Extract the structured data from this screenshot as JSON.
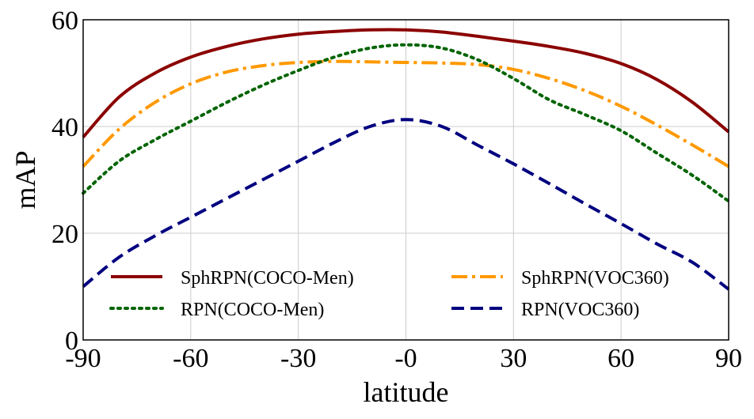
{
  "chart_data": {
    "type": "line",
    "title": "",
    "xlabel": "latitude",
    "ylabel": "mAP",
    "xlim": [
      -90,
      90
    ],
    "ylim": [
      0,
      60
    ],
    "grid": true,
    "x_ticks": [
      -90,
      -60,
      -30,
      0,
      30,
      60,
      90
    ],
    "x_tick_labels": [
      "-90",
      "-60",
      "-30",
      "-0",
      "30",
      "60",
      "90"
    ],
    "y_ticks": [
      0,
      20,
      40,
      60
    ],
    "y_tick_labels": [
      "0",
      "20",
      "40",
      "60"
    ],
    "legend_position": "bottom",
    "x": [
      -90,
      -80,
      -70,
      -60,
      -50,
      -40,
      -30,
      -20,
      -10,
      0,
      10,
      20,
      30,
      40,
      50,
      60,
      70,
      80,
      90
    ],
    "series": [
      {
        "name": "SphRPN(COCO-Men)",
        "color": "#8b0000",
        "dash": "solid",
        "values": [
          38,
          45.5,
          50,
          53,
          55,
          56.4,
          57.3,
          57.8,
          58.1,
          58.1,
          57.7,
          56.9,
          56,
          55,
          53.7,
          51.8,
          48.8,
          44.5,
          39
        ]
      },
      {
        "name": "SphRPN(VOC360)",
        "color": "#ff9900",
        "dash": "dashdot",
        "values": [
          32.5,
          39.5,
          44.5,
          48,
          50.2,
          51.4,
          52,
          52.2,
          52.1,
          52,
          51.9,
          51.6,
          50.7,
          49,
          46.7,
          43.8,
          40.3,
          36.5,
          32.5
        ]
      },
      {
        "name": "RPN(COCO-Men)",
        "color": "#006400",
        "dash": "dotted",
        "values": [
          27.5,
          33.5,
          37.5,
          41,
          44.5,
          47.7,
          50.5,
          53,
          54.7,
          55.3,
          54.7,
          52.5,
          49,
          45,
          42.2,
          39.2,
          35,
          30.8,
          26
        ]
      },
      {
        "name": "RPN(VOC360)",
        "color": "#000080",
        "dash": "dashed",
        "values": [
          10,
          15.5,
          19.5,
          23,
          26.5,
          30,
          33.5,
          37,
          40,
          41.3,
          40,
          36.5,
          33,
          29.3,
          25.5,
          21.8,
          18,
          14.5,
          9.5
        ]
      }
    ]
  }
}
